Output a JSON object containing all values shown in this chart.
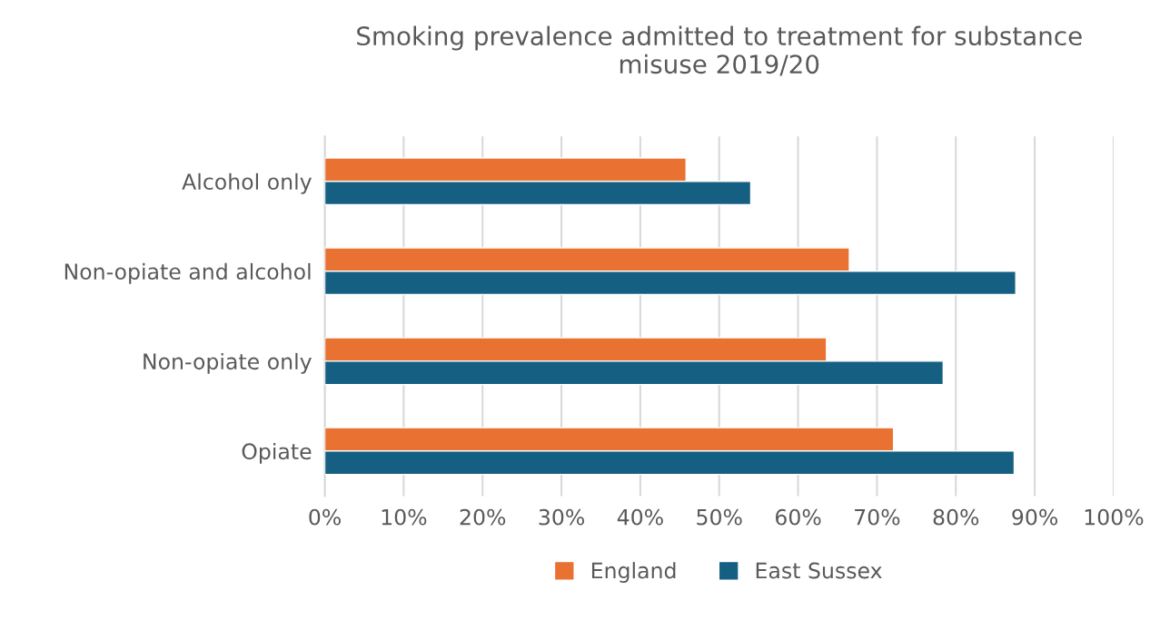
{
  "chart_data": {
    "type": "bar",
    "orientation": "horizontal",
    "title": "Smoking prevalence admitted to treatment for substance\nmisuse 2019/20",
    "categories": [
      "Alcohol only",
      "Non-opiate and alcohol",
      "Non-opiate only",
      "Opiate"
    ],
    "series": [
      {
        "name": "England",
        "color": "#e97132",
        "values": [
          45.8,
          66.5,
          63.6,
          72.1
        ]
      },
      {
        "name": "East Sussex",
        "color": "#156082",
        "values": [
          54.0,
          87.6,
          78.4,
          87.4
        ]
      }
    ],
    "xlim": [
      0,
      100
    ],
    "xticks": [
      {
        "value": 0,
        "label": "0%"
      },
      {
        "value": 10,
        "label": "10%"
      },
      {
        "value": 20,
        "label": "20%"
      },
      {
        "value": 30,
        "label": "30%"
      },
      {
        "value": 40,
        "label": "40%"
      },
      {
        "value": 50,
        "label": "50%"
      },
      {
        "value": 60,
        "label": "60%"
      },
      {
        "value": 70,
        "label": "70%"
      },
      {
        "value": 80,
        "label": "80%"
      },
      {
        "value": 90,
        "label": "90%"
      },
      {
        "value": 100,
        "label": "100%"
      }
    ],
    "grid": "x",
    "legend": "bottom"
  }
}
